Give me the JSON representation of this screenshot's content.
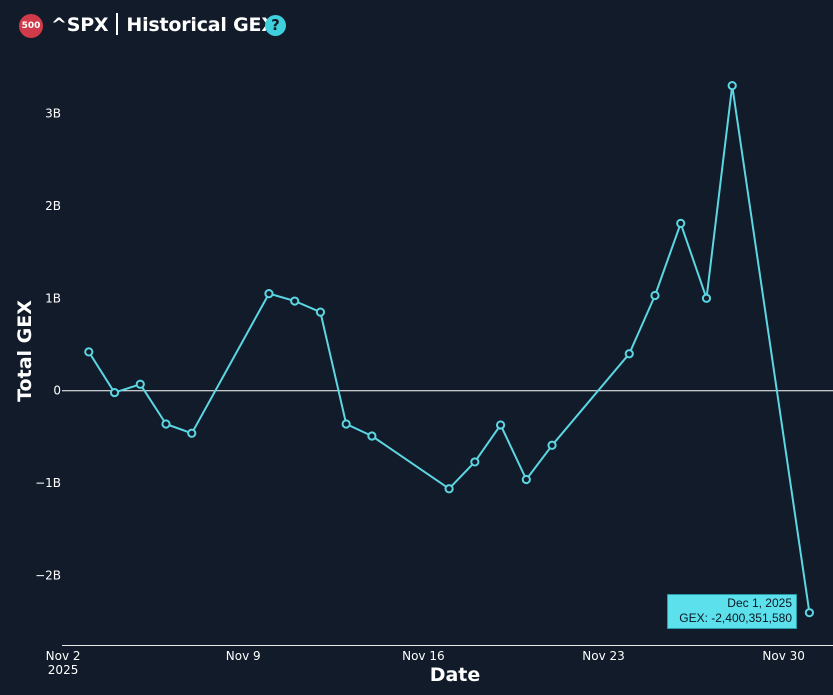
{
  "header": {
    "badge": "500",
    "ticker": "^SPX",
    "title": "Historical GEX",
    "help_icon": "question-circle-icon",
    "help_label": "?"
  },
  "chart_data": {
    "type": "line",
    "xlabel": "Date",
    "ylabel": "Total GEX",
    "x_tick_labels": [
      "Nov 2\n2025",
      "Nov 9",
      "Nov 16",
      "Nov 23",
      "Nov 30"
    ],
    "x_tick_dates": [
      "2025-11-02",
      "2025-11-09",
      "2025-11-16",
      "2025-11-23",
      "2025-11-30"
    ],
    "y_tick_labels": [
      "3B",
      "2B",
      "1B",
      "0",
      "−1B",
      "−2B"
    ],
    "y_tick_values": [
      3000000000,
      2000000000,
      1000000000,
      0,
      -1000000000,
      -2000000000
    ],
    "ylim": [
      -2750000000,
      3750000000
    ],
    "xlim": [
      "2025-11-01T23:00",
      "2025-12-01T22:00"
    ],
    "zero_line": true,
    "line_color": "#5cd6e3",
    "points": [
      {
        "x": "2025-11-03",
        "y": 420000000
      },
      {
        "x": "2025-11-04",
        "y": -20000000
      },
      {
        "x": "2025-11-05",
        "y": 70000000
      },
      {
        "x": "2025-11-06",
        "y": -360000000
      },
      {
        "x": "2025-11-07",
        "y": -460000000
      },
      {
        "x": "2025-11-10",
        "y": 1050000000
      },
      {
        "x": "2025-11-11",
        "y": 970000000
      },
      {
        "x": "2025-11-12",
        "y": 850000000
      },
      {
        "x": "2025-11-13",
        "y": -360000000
      },
      {
        "x": "2025-11-14",
        "y": -490000000
      },
      {
        "x": "2025-11-17",
        "y": -1060000000
      },
      {
        "x": "2025-11-18",
        "y": -770000000
      },
      {
        "x": "2025-11-19",
        "y": -370000000
      },
      {
        "x": "2025-11-20",
        "y": -960000000
      },
      {
        "x": "2025-11-21",
        "y": -590000000
      },
      {
        "x": "2025-11-24",
        "y": 400000000
      },
      {
        "x": "2025-11-25",
        "y": 1030000000
      },
      {
        "x": "2025-11-26",
        "y": 1810000000
      },
      {
        "x": "2025-11-27",
        "y": 1000000000
      },
      {
        "x": "2025-11-28",
        "y": 3300000000
      },
      {
        "x": "2025-12-01",
        "y": -2400351580
      }
    ],
    "tooltip": {
      "date": "Dec 1, 2025",
      "value": "GEX: -2,400,351,580"
    }
  }
}
